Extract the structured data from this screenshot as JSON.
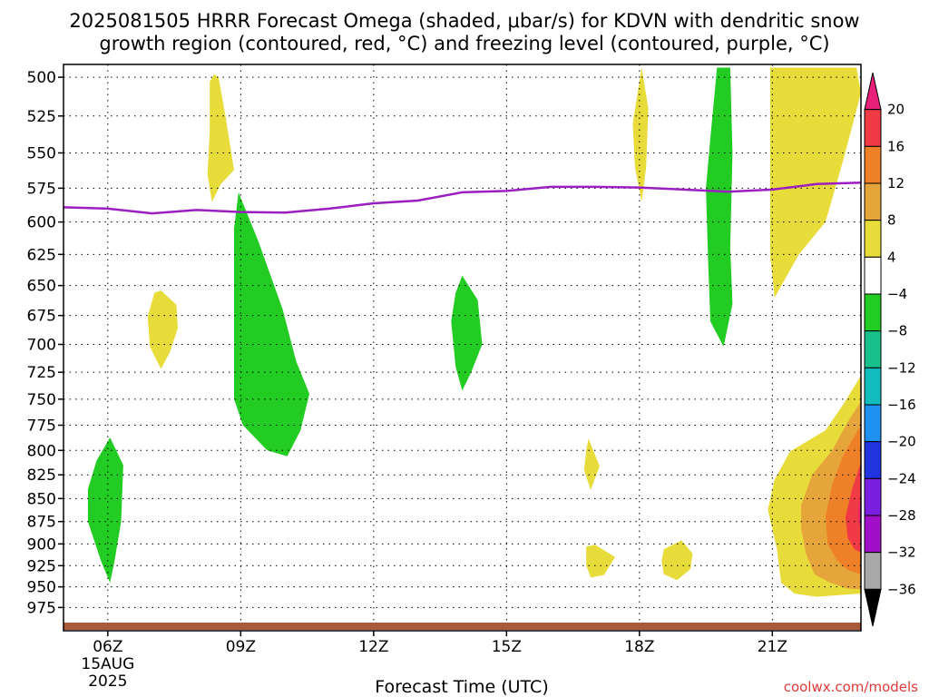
{
  "chart_data": {
    "type": "contour",
    "title_line1": "2025081505 HRRR Forecast Omega (shaded, μbar/s) for KDVN with dendritic snow",
    "title_line2": "growth region (contoured, red, °C) and freezing level (contoured, purple, °C)",
    "xlabel": "Forecast Time (UTC)",
    "credit": "coolwx.com/models",
    "x_ticks": [
      {
        "label": "06Z",
        "hour": 6,
        "date": "15AUG",
        "year": "2025"
      },
      {
        "label": "09Z",
        "hour": 9
      },
      {
        "label": "12Z",
        "hour": 12
      },
      {
        "label": "15Z",
        "hour": 15
      },
      {
        "label": "18Z",
        "hour": 18
      },
      {
        "label": "21Z",
        "hour": 21
      }
    ],
    "x_range": [
      5,
      23
    ],
    "y_ticks": [
      500,
      525,
      550,
      575,
      600,
      625,
      650,
      675,
      700,
      725,
      750,
      775,
      800,
      825,
      850,
      875,
      900,
      925,
      950,
      975
    ],
    "y_range_hpa": [
      492,
      1004
    ],
    "y_scale": "log-pressure",
    "grid": true,
    "colorbar": {
      "labels": [
        "20",
        "16",
        "12",
        "8",
        "4",
        "−4",
        "−8",
        "−12",
        "−16",
        "−20",
        "−24",
        "−28",
        "−32",
        "−36"
      ],
      "bands": [
        {
          "lo": 20,
          "hi": 99,
          "color": "#e8207a",
          "shape": "triangle-up"
        },
        {
          "lo": 16,
          "hi": 20,
          "color": "#f03a46"
        },
        {
          "lo": 12,
          "hi": 16,
          "color": "#ee8028"
        },
        {
          "lo": 8,
          "hi": 12,
          "color": "#e6a53a"
        },
        {
          "lo": 4,
          "hi": 8,
          "color": "#e8dc3a"
        },
        {
          "lo": -4,
          "hi": 4,
          "color": "#ffffff"
        },
        {
          "lo": -8,
          "hi": -4,
          "color": "#22cc22"
        },
        {
          "lo": -12,
          "hi": -8,
          "color": "#19c18a"
        },
        {
          "lo": -16,
          "hi": -12,
          "color": "#12bcbc"
        },
        {
          "lo": -20,
          "hi": -16,
          "color": "#1e90ee"
        },
        {
          "lo": -24,
          "hi": -20,
          "color": "#2233e0"
        },
        {
          "lo": -28,
          "hi": -24,
          "color": "#7a1ee0"
        },
        {
          "lo": -32,
          "hi": -28,
          "color": "#a010c8"
        },
        {
          "lo": -36,
          "hi": -32,
          "color": "#a8a8a8"
        },
        {
          "lo": -99,
          "hi": -36,
          "color": "#000000",
          "shape": "triangle-down"
        }
      ]
    },
    "freezing_level": {
      "color": "#9a1ec0",
      "points": [
        [
          5,
          589
        ],
        [
          6,
          590
        ],
        [
          7,
          593.5
        ],
        [
          8,
          591
        ],
        [
          9,
          592.5
        ],
        [
          10,
          593
        ],
        [
          11,
          590
        ],
        [
          12,
          586
        ],
        [
          13,
          584
        ],
        [
          14,
          578
        ],
        [
          15,
          577
        ],
        [
          16,
          574
        ],
        [
          17,
          574
        ],
        [
          18,
          574.5
        ],
        [
          19,
          576
        ],
        [
          20,
          577.5
        ],
        [
          21,
          576
        ],
        [
          22,
          572
        ],
        [
          23,
          571
        ]
      ]
    },
    "ground_color": "#a85a3a",
    "shaded_regions": [
      {
        "value": 6,
        "color": "#e8dc3a",
        "points": [
          [
            8.3,
            503
          ],
          [
            8.4,
            498
          ],
          [
            8.5,
            500
          ],
          [
            8.65,
            524
          ],
          [
            8.85,
            562
          ],
          [
            8.55,
            572
          ],
          [
            8.35,
            585
          ],
          [
            8.25,
            565
          ],
          [
            8.3,
            535
          ]
        ]
      },
      {
        "value": 6,
        "color": "#e8dc3a",
        "points": [
          [
            7.2,
            654
          ],
          [
            7.55,
            666
          ],
          [
            7.58,
            686
          ],
          [
            7.4,
            707
          ],
          [
            7.2,
            722
          ],
          [
            6.95,
            702
          ],
          [
            6.9,
            676
          ],
          [
            7.05,
            656
          ]
        ]
      },
      {
        "value": 6,
        "color": "#e8dc3a",
        "points": [
          [
            16.85,
            788
          ],
          [
            17.1,
            816
          ],
          [
            16.9,
            841
          ],
          [
            16.75,
            820
          ],
          [
            16.8,
            800
          ]
        ]
      },
      {
        "value": 6,
        "color": "#e8dc3a",
        "points": [
          [
            16.8,
            903
          ],
          [
            17.0,
            901
          ],
          [
            17.45,
            915
          ],
          [
            17.2,
            936
          ],
          [
            16.9,
            939
          ],
          [
            16.8,
            925
          ]
        ]
      },
      {
        "value": 6,
        "color": "#e8dc3a",
        "points": [
          [
            18.55,
            906
          ],
          [
            18.95,
            896
          ],
          [
            19.2,
            911
          ],
          [
            19.15,
            929
          ],
          [
            18.85,
            942
          ],
          [
            18.55,
            935
          ],
          [
            18.5,
            920
          ]
        ]
      },
      {
        "value": 6,
        "color": "#e8dc3a",
        "points": [
          [
            18.05,
            494
          ],
          [
            18.2,
            520
          ],
          [
            18.15,
            560
          ],
          [
            18.05,
            585
          ],
          [
            17.9,
            560
          ],
          [
            17.85,
            530
          ]
        ]
      },
      {
        "value": 6,
        "color": "#e8dc3a",
        "points": [
          [
            20.95,
            494
          ],
          [
            22.9,
            494
          ],
          [
            23,
            510
          ],
          [
            22.6,
            555
          ],
          [
            22.2,
            600
          ],
          [
            21.6,
            625
          ],
          [
            21.05,
            660
          ],
          [
            20.95,
            625
          ],
          [
            20.95,
            560
          ]
        ]
      },
      {
        "value": 6,
        "color": "#e8dc3a",
        "points": [
          [
            23,
            728
          ],
          [
            22.6,
            755
          ],
          [
            22.2,
            780
          ],
          [
            21.4,
            801
          ],
          [
            21.05,
            830
          ],
          [
            20.9,
            862
          ],
          [
            21.1,
            905
          ],
          [
            21.2,
            945
          ],
          [
            21.5,
            958
          ],
          [
            22,
            962
          ],
          [
            22.5,
            960
          ],
          [
            23,
            958
          ]
        ]
      },
      {
        "value": 10,
        "color": "#e6a53a",
        "points": [
          [
            23,
            752
          ],
          [
            22.7,
            772
          ],
          [
            22.35,
            800
          ],
          [
            21.9,
            825
          ],
          [
            21.65,
            857
          ],
          [
            21.65,
            882
          ],
          [
            21.75,
            910
          ],
          [
            21.95,
            935
          ],
          [
            22.3,
            945
          ],
          [
            22.7,
            952
          ],
          [
            23,
            953
          ]
        ]
      },
      {
        "value": 14,
        "color": "#ee8028",
        "points": [
          [
            23,
            775
          ],
          [
            22.6,
            805
          ],
          [
            22.35,
            835
          ],
          [
            22.2,
            870
          ],
          [
            22.25,
            900
          ],
          [
            22.45,
            918
          ],
          [
            22.7,
            930
          ],
          [
            23,
            935
          ]
        ]
      },
      {
        "value": 18,
        "color": "#f03a46",
        "points": [
          [
            23,
            812
          ],
          [
            22.8,
            840
          ],
          [
            22.65,
            870
          ],
          [
            22.7,
            893
          ],
          [
            22.85,
            906
          ],
          [
            23,
            910
          ]
        ]
      },
      {
        "value": 22,
        "color": "#e8207a",
        "points": [
          [
            23,
            845
          ],
          [
            22.95,
            862
          ],
          [
            22.95,
            876
          ],
          [
            23,
            882
          ]
        ]
      },
      {
        "value": -6,
        "color": "#22cc22",
        "points": [
          [
            6.05,
            787
          ],
          [
            6.35,
            815
          ],
          [
            6.3,
            875
          ],
          [
            6.15,
            920
          ],
          [
            6.05,
            945
          ],
          [
            5.85,
            920
          ],
          [
            5.55,
            875
          ],
          [
            5.55,
            840
          ],
          [
            5.75,
            810
          ]
        ]
      },
      {
        "value": -6,
        "color": "#22cc22",
        "points": [
          [
            8.95,
            578
          ],
          [
            9.4,
            615
          ],
          [
            9.95,
            670
          ],
          [
            10.25,
            715
          ],
          [
            10.55,
            745
          ],
          [
            10.35,
            780
          ],
          [
            10.05,
            806
          ],
          [
            9.6,
            800
          ],
          [
            9.05,
            775
          ],
          [
            8.85,
            750
          ],
          [
            8.85,
            700
          ],
          [
            8.85,
            645
          ],
          [
            8.85,
            605
          ]
        ]
      },
      {
        "value": -6,
        "color": "#22cc22",
        "points": [
          [
            14.0,
            642
          ],
          [
            14.35,
            662
          ],
          [
            14.45,
            700
          ],
          [
            14.2,
            725
          ],
          [
            14.0,
            742
          ],
          [
            13.85,
            720
          ],
          [
            13.75,
            680
          ],
          [
            13.85,
            656
          ]
        ]
      },
      {
        "value": -6,
        "color": "#22cc22",
        "points": [
          [
            19.75,
            494
          ],
          [
            20.05,
            494
          ],
          [
            20.1,
            550
          ],
          [
            20.05,
            620
          ],
          [
            20.1,
            665
          ],
          [
            19.9,
            702
          ],
          [
            19.6,
            680
          ],
          [
            19.55,
            630
          ],
          [
            19.5,
            575
          ],
          [
            19.6,
            540
          ]
        ]
      }
    ]
  }
}
